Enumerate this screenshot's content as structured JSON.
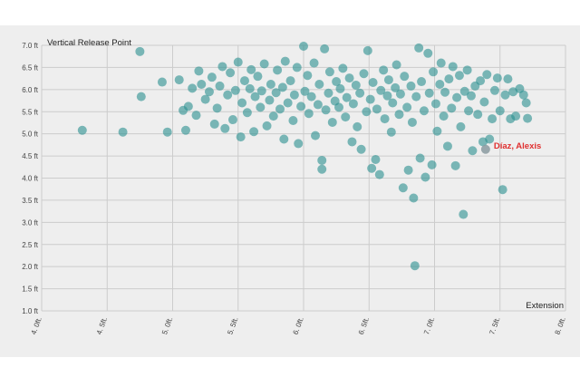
{
  "chart_data": {
    "type": "scatter",
    "ylabel": "Vertical Release Point",
    "xlabel": "Extension",
    "xlim": [
      4.0,
      8.0
    ],
    "ylim": [
      1.0,
      7.0
    ],
    "x_tick_labels": [
      "4. 0ft.",
      "4. 5ft.",
      "5. 0ft.",
      "5. 5ft.",
      "6. 0ft.",
      "6. 5ft.",
      "7. 0ft.",
      "7. 5ft.",
      "8. 0ft."
    ],
    "y_tick_labels": [
      "1.0 ft",
      "1.5 ft",
      "2.0 ft",
      "2.5 ft",
      "3.0 ft",
      "3.5 ft",
      "4.0 ft",
      "4.5 ft",
      "5.0 ft",
      "5.5 ft",
      "6.0 ft",
      "6.5 ft",
      "7.0 ft"
    ],
    "grid": true,
    "point_color": "#2a8f8f",
    "highlight": {
      "label": "Díaz, Alexis",
      "x": 7.39,
      "y": 4.65,
      "label_color": "#e03030",
      "point_color": "#8a9aa0"
    },
    "points": [
      [
        4.31,
        5.08
      ],
      [
        4.62,
        5.04
      ],
      [
        4.75,
        6.86
      ],
      [
        4.76,
        5.84
      ],
      [
        4.92,
        6.17
      ],
      [
        4.96,
        5.04
      ],
      [
        5.05,
        6.22
      ],
      [
        5.08,
        5.53
      ],
      [
        5.1,
        5.08
      ],
      [
        5.12,
        5.62
      ],
      [
        5.15,
        6.03
      ],
      [
        5.18,
        5.42
      ],
      [
        5.2,
        6.42
      ],
      [
        5.22,
        6.12
      ],
      [
        5.25,
        5.78
      ],
      [
        5.28,
        5.95
      ],
      [
        5.3,
        6.28
      ],
      [
        5.32,
        5.22
      ],
      [
        5.34,
        5.58
      ],
      [
        5.36,
        6.08
      ],
      [
        5.38,
        6.52
      ],
      [
        5.4,
        5.12
      ],
      [
        5.42,
        5.88
      ],
      [
        5.44,
        6.38
      ],
      [
        5.46,
        5.32
      ],
      [
        5.48,
        5.98
      ],
      [
        5.5,
        6.62
      ],
      [
        5.52,
        4.93
      ],
      [
        5.53,
        5.7
      ],
      [
        5.55,
        6.2
      ],
      [
        5.57,
        5.48
      ],
      [
        5.59,
        6.02
      ],
      [
        5.6,
        6.45
      ],
      [
        5.62,
        5.05
      ],
      [
        5.63,
        5.84
      ],
      [
        5.65,
        6.3
      ],
      [
        5.67,
        5.6
      ],
      [
        5.68,
        5.97
      ],
      [
        5.7,
        6.58
      ],
      [
        5.72,
        5.18
      ],
      [
        5.74,
        5.76
      ],
      [
        5.75,
        6.12
      ],
      [
        5.77,
        5.4
      ],
      [
        5.79,
        5.93
      ],
      [
        5.8,
        6.44
      ],
      [
        5.82,
        5.56
      ],
      [
        5.84,
        6.05
      ],
      [
        5.85,
        4.88
      ],
      [
        5.86,
        6.64
      ],
      [
        5.88,
        5.7
      ],
      [
        5.9,
        6.2
      ],
      [
        5.92,
        5.3
      ],
      [
        5.93,
        5.88
      ],
      [
        5.95,
        6.5
      ],
      [
        5.96,
        4.78
      ],
      [
        5.98,
        5.62
      ],
      [
        6.0,
        6.98
      ],
      [
        6.01,
        5.96
      ],
      [
        6.03,
        6.32
      ],
      [
        6.04,
        5.46
      ],
      [
        6.06,
        5.84
      ],
      [
        6.08,
        6.6
      ],
      [
        6.09,
        4.96
      ],
      [
        6.11,
        5.66
      ],
      [
        6.12,
        6.12
      ],
      [
        6.14,
        4.4
      ],
      [
        6.14,
        4.2
      ],
      [
        6.16,
        6.92
      ],
      [
        6.17,
        5.54
      ],
      [
        6.19,
        5.92
      ],
      [
        6.2,
        6.4
      ],
      [
        6.22,
        5.26
      ],
      [
        6.24,
        5.74
      ],
      [
        6.25,
        6.18
      ],
      [
        6.27,
        5.6
      ],
      [
        6.28,
        6.02
      ],
      [
        6.3,
        6.48
      ],
      [
        6.32,
        5.38
      ],
      [
        6.33,
        5.82
      ],
      [
        6.35,
        6.26
      ],
      [
        6.37,
        4.82
      ],
      [
        6.38,
        5.68
      ],
      [
        6.4,
        6.1
      ],
      [
        6.41,
        5.16
      ],
      [
        6.43,
        5.92
      ],
      [
        6.44,
        4.65
      ],
      [
        6.46,
        6.36
      ],
      [
        6.48,
        5.5
      ],
      [
        6.49,
        6.88
      ],
      [
        6.51,
        5.78
      ],
      [
        6.52,
        4.22
      ],
      [
        6.53,
        6.16
      ],
      [
        6.55,
        4.42
      ],
      [
        6.56,
        5.56
      ],
      [
        6.58,
        4.08
      ],
      [
        6.59,
        5.98
      ],
      [
        6.61,
        6.44
      ],
      [
        6.62,
        5.34
      ],
      [
        6.64,
        5.86
      ],
      [
        6.65,
        6.22
      ],
      [
        6.67,
        5.04
      ],
      [
        6.68,
        5.7
      ],
      [
        6.7,
        6.04
      ],
      [
        6.71,
        6.56
      ],
      [
        6.73,
        5.44
      ],
      [
        6.74,
        5.9
      ],
      [
        6.76,
        3.78
      ],
      [
        6.77,
        6.3
      ],
      [
        6.79,
        5.6
      ],
      [
        6.8,
        4.18
      ],
      [
        6.82,
        6.08
      ],
      [
        6.83,
        5.26
      ],
      [
        6.84,
        3.55
      ],
      [
        6.85,
        2.02
      ],
      [
        6.86,
        5.84
      ],
      [
        6.88,
        6.94
      ],
      [
        6.89,
        4.45
      ],
      [
        6.9,
        6.18
      ],
      [
        6.92,
        5.52
      ],
      [
        6.93,
        4.02
      ],
      [
        6.95,
        6.82
      ],
      [
        6.96,
        5.92
      ],
      [
        6.98,
        4.3
      ],
      [
        6.99,
        6.4
      ],
      [
        7.01,
        5.68
      ],
      [
        7.02,
        5.06
      ],
      [
        7.04,
        6.12
      ],
      [
        7.05,
        6.6
      ],
      [
        7.07,
        5.4
      ],
      [
        7.08,
        5.94
      ],
      [
        7.1,
        4.72
      ],
      [
        7.11,
        6.24
      ],
      [
        7.13,
        5.58
      ],
      [
        7.14,
        6.52
      ],
      [
        7.16,
        4.28
      ],
      [
        7.17,
        5.82
      ],
      [
        7.19,
        6.32
      ],
      [
        7.2,
        5.16
      ],
      [
        7.22,
        3.18
      ],
      [
        7.23,
        5.96
      ],
      [
        7.25,
        6.44
      ],
      [
        7.26,
        5.52
      ],
      [
        7.28,
        5.86
      ],
      [
        7.29,
        4.62
      ],
      [
        7.31,
        6.08
      ],
      [
        7.33,
        5.44
      ],
      [
        7.35,
        6.2
      ],
      [
        7.37,
        4.82
      ],
      [
        7.38,
        5.72
      ],
      [
        7.4,
        6.34
      ],
      [
        7.42,
        4.88
      ],
      [
        7.44,
        5.34
      ],
      [
        7.46,
        5.98
      ],
      [
        7.48,
        6.26
      ],
      [
        7.5,
        5.52
      ],
      [
        7.52,
        3.74
      ],
      [
        7.54,
        5.88
      ],
      [
        7.56,
        6.24
      ],
      [
        7.58,
        5.34
      ],
      [
        7.6,
        5.95
      ],
      [
        7.62,
        5.4
      ],
      [
        7.65,
        6.02
      ],
      [
        7.68,
        5.88
      ],
      [
        7.7,
        5.7
      ],
      [
        7.71,
        5.35
      ]
    ]
  }
}
